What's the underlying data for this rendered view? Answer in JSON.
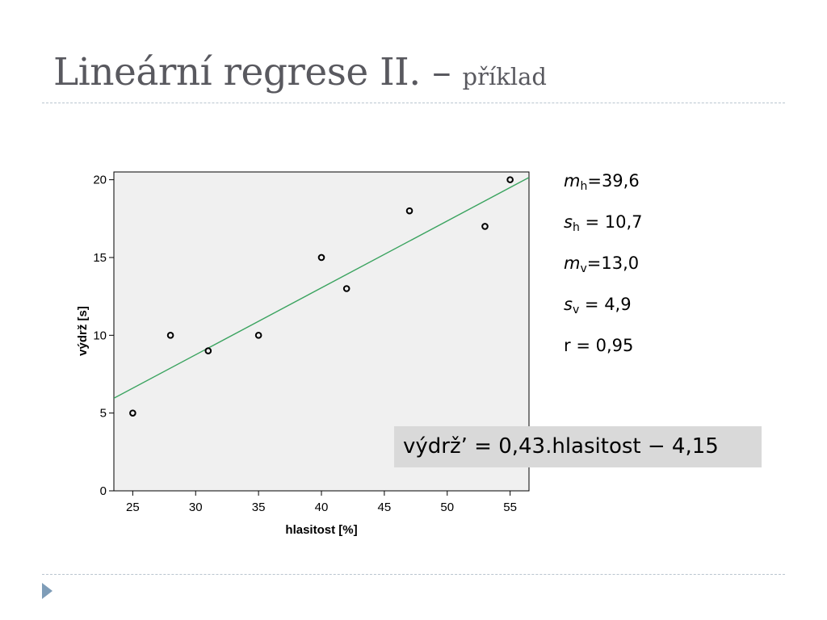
{
  "slide": {
    "title_main": "Lineární regrese II. –",
    "title_sub": "příklad"
  },
  "chart_data": {
    "type": "scatter",
    "xlabel": "hlasitost [%]",
    "ylabel": "výdrž [s]",
    "xlim": [
      23.5,
      56.5
    ],
    "ylim": [
      0,
      20.5
    ],
    "x_ticks": [
      25,
      30,
      35,
      40,
      45,
      50,
      55
    ],
    "y_ticks": [
      0,
      5,
      10,
      15,
      20
    ],
    "grid": false,
    "plot_background": "#f0f0f0",
    "points": [
      {
        "x": 25,
        "y": 5
      },
      {
        "x": 28,
        "y": 10
      },
      {
        "x": 31,
        "y": 9
      },
      {
        "x": 35,
        "y": 10
      },
      {
        "x": 40,
        "y": 15
      },
      {
        "x": 42,
        "y": 13
      },
      {
        "x": 47,
        "y": 18
      },
      {
        "x": 53,
        "y": 17
      },
      {
        "x": 55,
        "y": 20
      }
    ],
    "fit_line": {
      "slope": 0.43,
      "intercept": -4.15,
      "color": "#3aa35f"
    }
  },
  "stats": [
    {
      "symbol": "m",
      "sub": "h",
      "rest": "=39,6"
    },
    {
      "symbol": "s",
      "sub": "h",
      "rest": " = 10,7"
    },
    {
      "symbol": "m",
      "sub": "v",
      "rest": "=13,0"
    },
    {
      "symbol": "s",
      "sub": "v",
      "rest": " = 4,9"
    },
    {
      "symbol": "r",
      "sub": "",
      "rest": " = 0,95"
    }
  ],
  "equation": "výdrž’ = 0,43.hlasitost − 4,15",
  "colors": {
    "title": "#59595f",
    "rule": "#b9c5cf",
    "bullet": "#7f9db8",
    "equation_background": "#d9d9d9"
  }
}
